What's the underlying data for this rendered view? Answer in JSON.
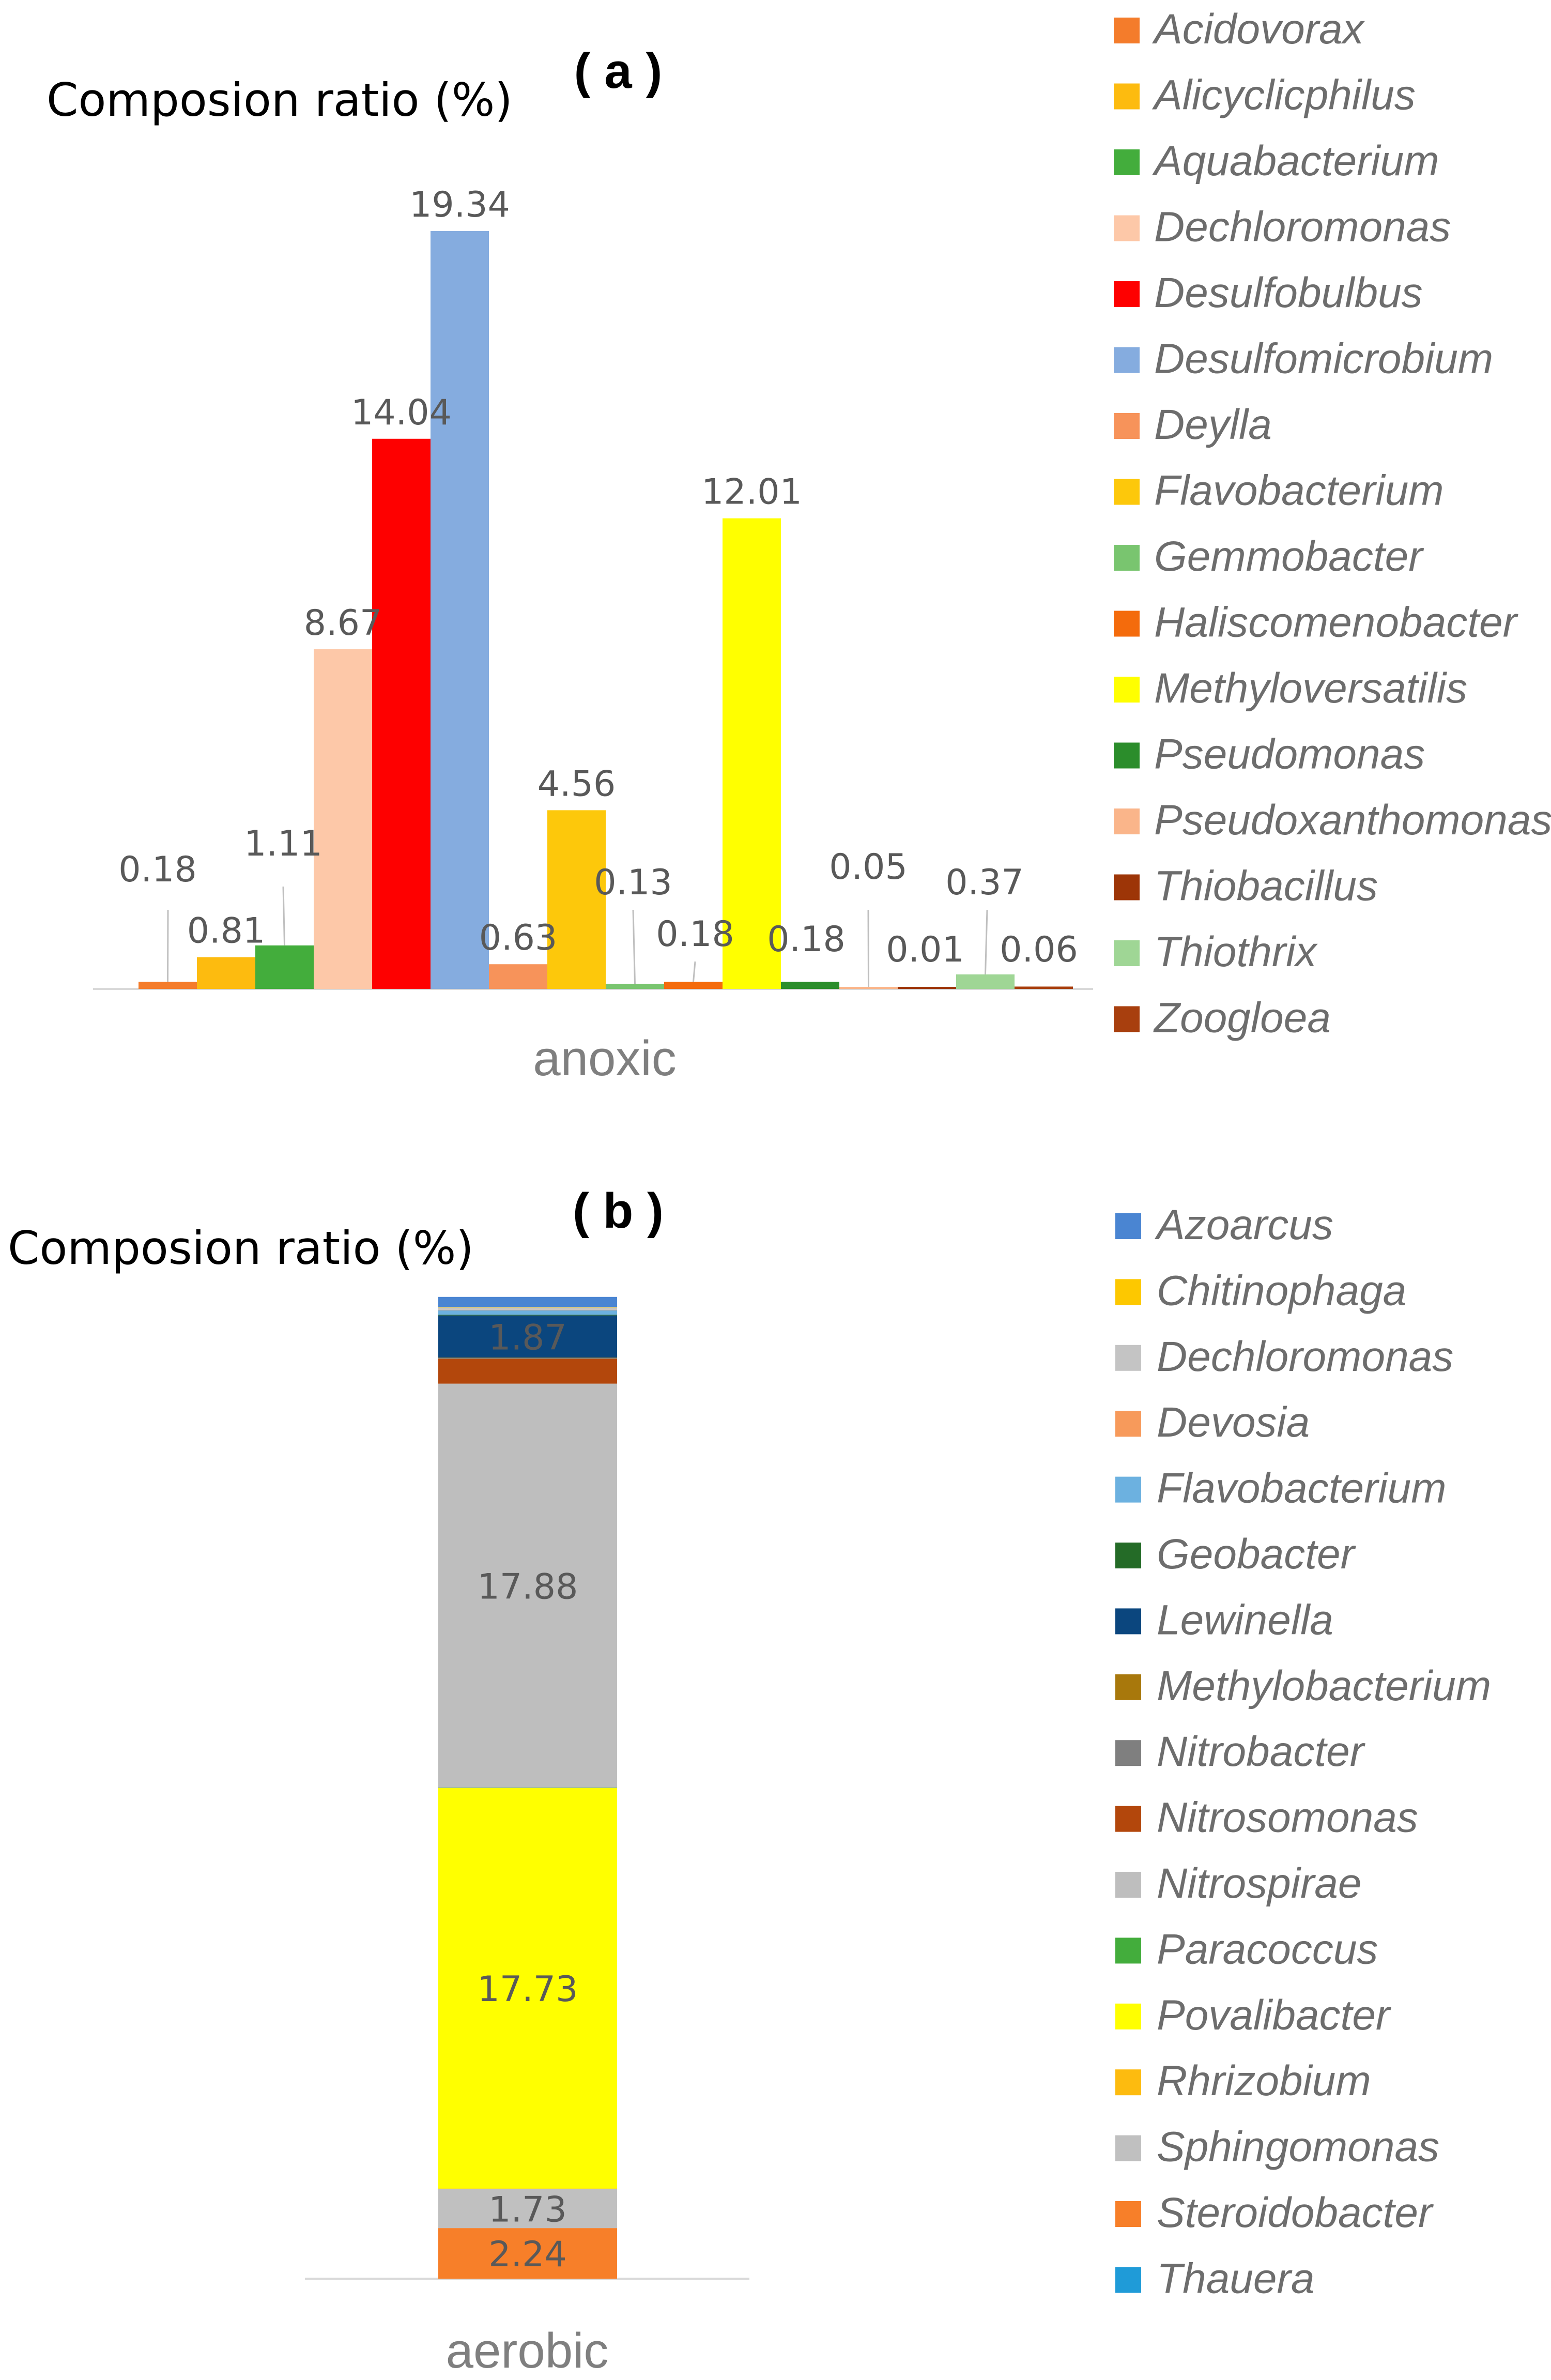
{
  "chart_data": [
    {
      "panel": "( a )",
      "type": "bar",
      "ylabel": "Composion ratio (%)",
      "category": "anoxic",
      "series": [
        {
          "name": "Acidovorax",
          "value": 0.18,
          "label": "0.18",
          "color": "#f47c2b"
        },
        {
          "name": "Alicyclicphilus",
          "value": 0.81,
          "label": "0.81",
          "color": "#fdbb0f"
        },
        {
          "name": "Aquabacterium",
          "value": 1.11,
          "label": "1.11",
          "color": "#43ad3c"
        },
        {
          "name": "Dechloromonas",
          "value": 8.67,
          "label": "8.67",
          "color": "#fdc8a8"
        },
        {
          "name": "Desulfobulbus",
          "value": 14.04,
          "label": "14.04",
          "color": "#fe0000"
        },
        {
          "name": "Desulfomicrobium",
          "value": 19.34,
          "label": "19.34",
          "color": "#85acdf"
        },
        {
          "name": "Deylla",
          "value": 0.63,
          "label": "0.63",
          "color": "#f7935a"
        },
        {
          "name": "Flavobacterium",
          "value": 4.56,
          "label": "4.56",
          "color": "#fdc80b"
        },
        {
          "name": "Gemmobacter",
          "value": 0.13,
          "label": "0.13",
          "color": "#79c56f"
        },
        {
          "name": "Haliscomenobacter",
          "value": 0.18,
          "label": "0.18",
          "color": "#f46b0c"
        },
        {
          "name": "Methyloversatilis",
          "value": 12.01,
          "label": "12.01",
          "color": "#ffff00"
        },
        {
          "name": "Pseudomonas",
          "value": 0.18,
          "label": "0.18",
          "color": "#2b8d2b"
        },
        {
          "name": "Pseudoxanthomonas",
          "value": 0.05,
          "label": "0.05",
          "color": "#fab58a"
        },
        {
          "name": "Thiobacillus",
          "value": 0.01,
          "label": "0.01",
          "color": "#9d3507"
        },
        {
          "name": "Thiothrix",
          "value": 0.37,
          "label": "0.37",
          "color": "#9fd695"
        },
        {
          "name": "Zoogloea",
          "value": 0.06,
          "label": "0.06",
          "color": "#a83f0e"
        }
      ]
    },
    {
      "panel": "( b )",
      "type": "bar",
      "stacked": true,
      "ylabel": "Composion ratio (%)",
      "category": "aerobic",
      "series": [
        {
          "name": "Azoarcus",
          "value": 0.45,
          "label": "",
          "color": "#4a85d2"
        },
        {
          "name": "Chitinophaga",
          "value": 0.02,
          "label": "",
          "color": "#fdc800"
        },
        {
          "name": "Dechloromonas",
          "value": 0.1,
          "label": "",
          "color": "#c4c4c4"
        },
        {
          "name": "Devosia",
          "value": 0.02,
          "label": "",
          "color": "#f79a5b"
        },
        {
          "name": "Flavobacterium",
          "value": 0.2,
          "label": "",
          "color": "#6cb1e0"
        },
        {
          "name": "Geobacter",
          "value": 0.03,
          "label": "",
          "color": "#246b27"
        },
        {
          "name": "Lewinella",
          "value": 1.87,
          "label": "1.87",
          "color": "#0b467e"
        },
        {
          "name": "Methylobacterium",
          "value": 0.02,
          "label": "",
          "color": "#a8780c"
        },
        {
          "name": "Nitrobacter",
          "value": 0.03,
          "label": "",
          "color": "#7f7f7f"
        },
        {
          "name": "Nitrosomonas",
          "value": 1.1,
          "label": "",
          "color": "#b3470c"
        },
        {
          "name": "Nitrospirae",
          "value": 17.88,
          "label": "17.88",
          "color": "#bebebe"
        },
        {
          "name": "Paracoccus",
          "value": 0.02,
          "label": "",
          "color": "#43ad3c"
        },
        {
          "name": "Povalibacter",
          "value": 17.73,
          "label": "17.73",
          "color": "#ffff00"
        },
        {
          "name": "Rhrizobium",
          "value": 0.02,
          "label": "",
          "color": "#fdbb0f"
        },
        {
          "name": "Sphingomonas",
          "value": 1.73,
          "label": "1.73",
          "color": "#c0c0c0"
        },
        {
          "name": "Steroidobacter",
          "value": 2.24,
          "label": "2.24",
          "color": "#f77f29"
        },
        {
          "name": "Thauera",
          "value": 0.0,
          "label": "",
          "color": "#1f9bd8"
        }
      ]
    }
  ]
}
